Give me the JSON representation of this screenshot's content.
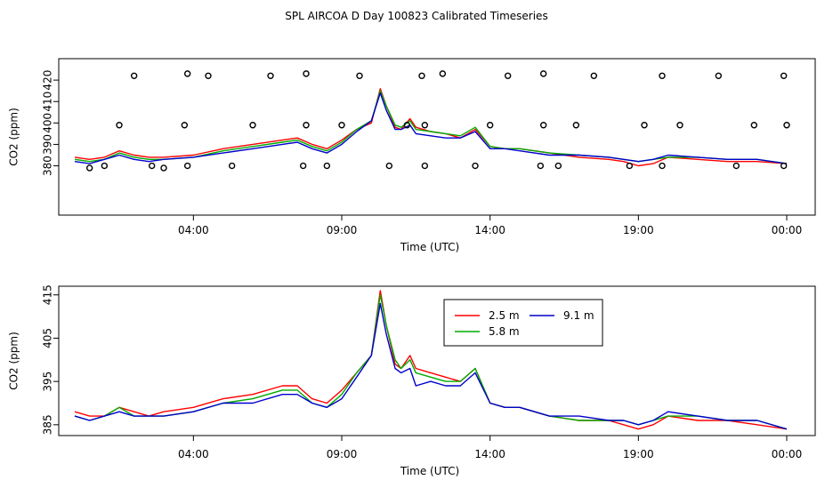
{
  "figure_title": "SPL AIRCOA D  Day 100823  Calibrated Timeseries",
  "chart_data": [
    {
      "type": "line",
      "title": "",
      "xlabel": "Time (UTC)",
      "ylabel": "CO2 (ppm)",
      "x_unit": "hours",
      "xlim": [
        0,
        24
      ],
      "ylim": [
        357,
        430
      ],
      "x_ticks": [
        {
          "value": 4,
          "label": "04:00"
        },
        {
          "value": 9,
          "label": "09:00"
        },
        {
          "value": 14,
          "label": "14:00"
        },
        {
          "value": 19,
          "label": "19:00"
        },
        {
          "value": 24,
          "label": "00:00"
        }
      ],
      "y_ticks": [
        {
          "value": 380,
          "label": "380"
        },
        {
          "value": 390,
          "label": "390"
        },
        {
          "value": 400,
          "label": "400"
        },
        {
          "value": 410,
          "label": "410"
        },
        {
          "value": 420,
          "label": "420"
        }
      ],
      "series": [
        {
          "name": "",
          "color": "#ff0000",
          "x": [
            0,
            0.5,
            1,
            1.5,
            2,
            2.5,
            3,
            4,
            5,
            6,
            7,
            7.5,
            8,
            8.5,
            9,
            9.5,
            10,
            10.3,
            10.5,
            10.8,
            11,
            11.3,
            11.5,
            12,
            12.5,
            13,
            13.5,
            14,
            14.5,
            15,
            16,
            17,
            18,
            18.5,
            19,
            19.5,
            20,
            21,
            22,
            23,
            24
          ],
          "y": [
            384,
            383,
            384,
            387,
            385,
            384,
            384,
            385,
            388,
            390,
            392,
            393,
            390,
            388,
            392,
            397,
            400,
            416,
            408,
            398,
            397,
            402,
            398,
            396,
            395,
            393,
            397,
            389,
            388,
            388,
            386,
            384,
            383,
            382,
            380,
            381,
            384,
            383,
            382,
            382,
            381
          ]
        },
        {
          "name": "",
          "color": "#00aa00",
          "x": [
            0,
            0.5,
            1,
            1.5,
            2,
            2.5,
            3,
            4,
            5,
            6,
            7,
            7.5,
            8,
            8.5,
            9,
            9.5,
            10,
            10.3,
            10.5,
            10.8,
            11,
            11.3,
            11.5,
            12,
            12.5,
            13,
            13.5,
            14,
            14.5,
            15,
            16,
            17,
            18,
            18.5,
            19,
            19.5,
            20,
            21,
            22,
            23,
            24
          ],
          "y": [
            383,
            382,
            383,
            386,
            384,
            383,
            383,
            384,
            387,
            389,
            391,
            392,
            389,
            387,
            391,
            397,
            401,
            415,
            408,
            399,
            398,
            401,
            397,
            396,
            395,
            394,
            398,
            389,
            388,
            388,
            386,
            385,
            384,
            383,
            382,
            383,
            384,
            384,
            383,
            383,
            381
          ]
        },
        {
          "name": "",
          "color": "#0000cc",
          "x": [
            0,
            0.5,
            1,
            1.5,
            2,
            2.5,
            3,
            4,
            5,
            6,
            7,
            7.5,
            8,
            8.5,
            9,
            9.5,
            10,
            10.3,
            10.5,
            10.8,
            11,
            11.3,
            11.5,
            12,
            12.5,
            13,
            13.5,
            14,
            14.5,
            15,
            16,
            17,
            18,
            18.5,
            19,
            19.5,
            20,
            21,
            22,
            23,
            24
          ],
          "y": [
            382,
            381,
            383,
            385,
            383,
            382,
            383,
            384,
            386,
            388,
            390,
            391,
            388,
            386,
            390,
            396,
            401,
            414,
            406,
            397,
            397,
            399,
            395,
            394,
            393,
            393,
            396,
            388,
            388,
            387,
            385,
            385,
            384,
            383,
            382,
            383,
            385,
            384,
            383,
            383,
            381
          ]
        }
      ],
      "scatter_points": {
        "x": [
          0.5,
          1.0,
          1.5,
          2.0,
          2.6,
          3.0,
          3.7,
          3.8,
          3.8,
          4.5,
          5.3,
          6.0,
          6.6,
          7.7,
          7.8,
          7.8,
          8.5,
          9.0,
          9.6,
          10.6,
          11.2,
          11.7,
          11.8,
          11.8,
          12.4,
          13.5,
          14.0,
          14.6,
          15.7,
          15.8,
          15.8,
          16.3,
          16.9,
          17.5,
          18.7,
          19.2,
          19.8,
          19.8,
          20.4,
          21.7,
          22.3,
          22.9,
          23.9,
          23.9,
          24.0
        ],
        "y": [
          379,
          380,
          399,
          422,
          380,
          379,
          399,
          380,
          423,
          422,
          380,
          399,
          422,
          380,
          399,
          423,
          380,
          399,
          422,
          380,
          399,
          422,
          380,
          399,
          423,
          380,
          399,
          422,
          380,
          399,
          423,
          380,
          399,
          422,
          380,
          399,
          422,
          380,
          399,
          422,
          380,
          399,
          422,
          380,
          399
        ]
      }
    },
    {
      "type": "line",
      "title": "",
      "xlabel": "Time (UTC)",
      "ylabel": "CO2 (ppm)",
      "x_unit": "hours",
      "xlim": [
        0,
        24
      ],
      "ylim": [
        382.5,
        417
      ],
      "x_ticks": [
        {
          "value": 4,
          "label": "04:00"
        },
        {
          "value": 9,
          "label": "09:00"
        },
        {
          "value": 14,
          "label": "14:00"
        },
        {
          "value": 19,
          "label": "19:00"
        },
        {
          "value": 24,
          "label": "00:00"
        }
      ],
      "y_ticks": [
        {
          "value": 385,
          "label": "385"
        },
        {
          "value": 395,
          "label": "395"
        },
        {
          "value": 405,
          "label": "405"
        },
        {
          "value": 415,
          "label": "415"
        }
      ],
      "legend_position": "top-right-of-center",
      "series": [
        {
          "name": "2.5 m",
          "color": "#ff0000",
          "x": [
            0,
            0.5,
            1,
            1.5,
            2,
            2.5,
            3,
            4,
            5,
            6,
            7,
            7.5,
            8,
            8.5,
            9,
            9.5,
            10,
            10.3,
            10.5,
            10.8,
            11,
            11.3,
            11.5,
            12,
            12.5,
            13,
            13.5,
            14,
            14.5,
            15,
            16,
            17,
            18,
            18.5,
            19,
            19.5,
            20,
            21,
            22,
            23,
            24
          ],
          "y": [
            388,
            387,
            387,
            389,
            388,
            387,
            388,
            389,
            391,
            392,
            394,
            394,
            391,
            390,
            393,
            397,
            401,
            416,
            408,
            399,
            398,
            401,
            398,
            397,
            396,
            395,
            398,
            390,
            389,
            389,
            387,
            386,
            386,
            385,
            384,
            385,
            387,
            386,
            386,
            385,
            384
          ]
        },
        {
          "name": "5.8 m",
          "color": "#00aa00",
          "x": [
            0,
            0.5,
            1,
            1.5,
            2,
            2.5,
            3,
            4,
            5,
            6,
            7,
            7.5,
            8,
            8.5,
            9,
            9.5,
            10,
            10.3,
            10.5,
            10.8,
            11,
            11.3,
            11.5,
            12,
            12.5,
            13,
            13.5,
            14,
            14.5,
            15,
            16,
            17,
            18,
            18.5,
            19,
            19.5,
            20,
            21,
            22,
            23,
            24
          ],
          "y": [
            387,
            386,
            387,
            389,
            387,
            387,
            387,
            388,
            390,
            391,
            393,
            393,
            390,
            389,
            392,
            397,
            401,
            415,
            408,
            400,
            398,
            400,
            397,
            396,
            395,
            395,
            398,
            390,
            389,
            389,
            387,
            386,
            386,
            386,
            385,
            386,
            387,
            387,
            386,
            386,
            384
          ]
        },
        {
          "name": "9.1 m",
          "color": "#0000cc",
          "x": [
            0,
            0.5,
            1,
            1.5,
            2,
            2.5,
            3,
            4,
            5,
            6,
            7,
            7.5,
            8,
            8.5,
            9,
            9.5,
            10,
            10.3,
            10.5,
            10.8,
            11,
            11.3,
            11.5,
            12,
            12.5,
            13,
            13.5,
            14,
            14.5,
            15,
            16,
            17,
            18,
            18.5,
            19,
            19.5,
            20,
            21,
            22,
            23,
            24
          ],
          "y": [
            387,
            386,
            387,
            388,
            387,
            387,
            387,
            388,
            390,
            390,
            392,
            392,
            390,
            389,
            391,
            396,
            401,
            413,
            406,
            398,
            397,
            398,
            394,
            395,
            394,
            394,
            397,
            390,
            389,
            389,
            387,
            387,
            386,
            386,
            385,
            386,
            388,
            387,
            386,
            386,
            384
          ]
        }
      ]
    }
  ]
}
